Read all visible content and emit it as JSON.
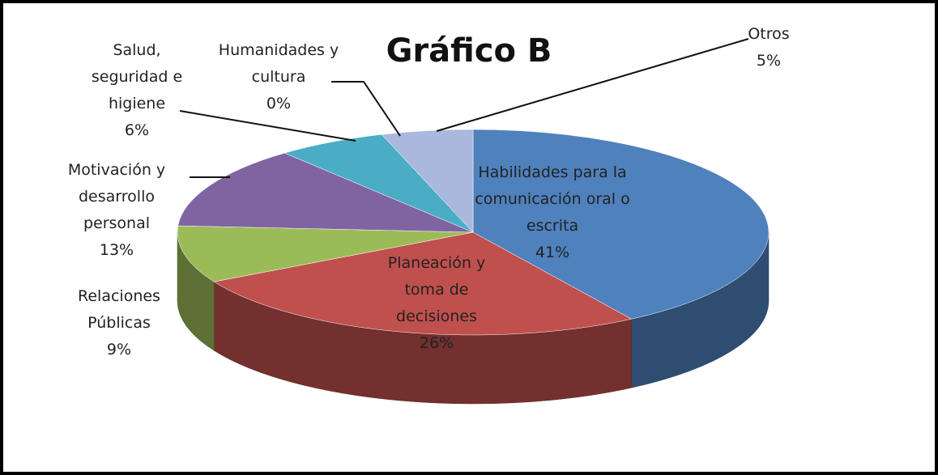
{
  "chart_data": {
    "type": "pie",
    "title": "Gráfico B",
    "categories": [
      "Habilidades para la comunicación oral o escrita",
      "Planeación y toma de decisiones",
      "Relaciones Públicas",
      "Motivación y desarrollo personal",
      "Salud, seguridad e higiene",
      "Humanidades y cultura",
      "Otros"
    ],
    "values": [
      41,
      26,
      9,
      13,
      6,
      0,
      5
    ],
    "value_labels": [
      "41%",
      "26%",
      "9%",
      "13%",
      "6%",
      "0%",
      "5%"
    ],
    "colors": [
      "#4f81bd",
      "#c0504d",
      "#9bbb59",
      "#8064a2",
      "#4bacc6",
      "#f79646",
      "#a9b8dc"
    ]
  }
}
